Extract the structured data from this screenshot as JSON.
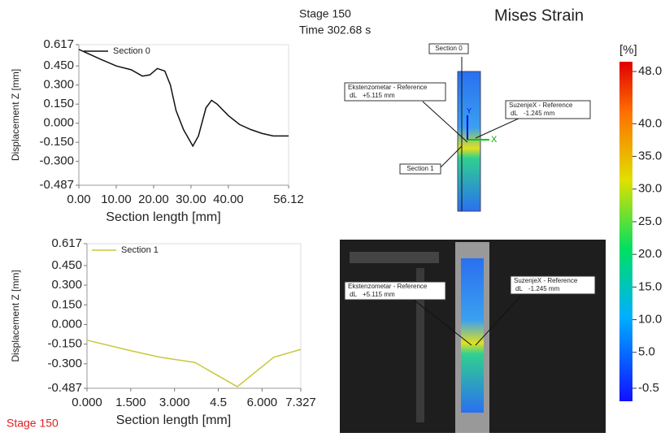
{
  "header": {
    "stage": "Stage 150",
    "time": "Time  302.68 s",
    "title": "Mises Strain"
  },
  "chart_data": [
    {
      "type": "line",
      "ylabel": "Displacement Z [mm]",
      "xlabel": "Section length [mm]",
      "xlim": [
        0,
        56.12
      ],
      "ylim": [
        -0.487,
        0.617
      ],
      "xticks": [
        {
          "value": 0,
          "label": "0.00"
        },
        {
          "value": 10,
          "label": "10.00"
        },
        {
          "value": 20,
          "label": "20.00"
        },
        {
          "value": 30,
          "label": "30.00"
        },
        {
          "value": 40,
          "label": "40.00"
        },
        56.12
      ],
      "yticks": [
        0.617,
        {
          "value": 0.45,
          "label": "0.450"
        },
        {
          "value": 0.3,
          "label": "0.300"
        },
        {
          "value": 0.15,
          "label": "0.150"
        },
        {
          "value": 0,
          "label": "0.000"
        },
        {
          "value": -0.15,
          "label": "-0.150"
        },
        {
          "value": -0.3,
          "label": "-0.300"
        },
        -0.487
      ],
      "series": [
        {
          "name": "Section 0",
          "color": "#111111",
          "x": [
            0,
            3,
            6,
            10,
            14,
            17,
            19,
            21,
            23,
            24.5,
            26,
            28,
            30.5,
            32,
            34,
            35.5,
            37,
            40,
            43,
            46,
            49,
            52,
            56.12
          ],
          "values": [
            0.58,
            0.54,
            0.5,
            0.45,
            0.42,
            0.37,
            0.38,
            0.43,
            0.41,
            0.3,
            0.1,
            -0.05,
            -0.18,
            -0.1,
            0.12,
            0.18,
            0.15,
            0.06,
            -0.01,
            -0.05,
            -0.08,
            -0.1,
            -0.1
          ]
        }
      ]
    },
    {
      "type": "line",
      "ylabel": "Displacement Z [mm]",
      "xlabel": "Section length [mm]",
      "xlim": [
        0,
        7.327
      ],
      "ylim": [
        -0.487,
        0.617
      ],
      "xticks": [
        {
          "value": 0,
          "label": "0.000"
        },
        {
          "value": 1.5,
          "label": "1.500"
        },
        {
          "value": 3,
          "label": "3.000"
        },
        4.5,
        {
          "value": 6,
          "label": "6.000"
        },
        7.327
      ],
      "yticks": [
        0.617,
        {
          "value": 0.45,
          "label": "0.450"
        },
        {
          "value": 0.3,
          "label": "0.300"
        },
        {
          "value": 0.15,
          "label": "0.150"
        },
        {
          "value": 0,
          "label": "0.000"
        },
        {
          "value": -0.15,
          "label": "-0.150"
        },
        {
          "value": -0.3,
          "label": "-0.300"
        },
        -0.487
      ],
      "series": [
        {
          "name": "Section 1",
          "color": "#c8c83a",
          "x": [
            0,
            1.5,
            2.5,
            3.7,
            5.15,
            6.4,
            7.327
          ],
          "values": [
            -0.12,
            -0.2,
            -0.25,
            -0.29,
            -0.475,
            -0.25,
            -0.19
          ]
        }
      ]
    }
  ],
  "colorbar": {
    "unit": "[%]",
    "lim": [
      -0.5,
      48
    ],
    "ticks": [
      {
        "value": 48,
        "label": "48.0"
      },
      {
        "value": 40,
        "label": "40.0"
      },
      {
        "value": 35,
        "label": "35.0"
      },
      {
        "value": 30,
        "label": "30.0"
      },
      {
        "value": 25,
        "label": "25.0"
      },
      {
        "value": 20,
        "label": "20.0"
      },
      {
        "value": 15,
        "label": "15.0"
      },
      {
        "value": 10,
        "label": "10.0"
      },
      {
        "value": 5,
        "label": "5.0"
      },
      -0.5
    ]
  },
  "view3d": {
    "section0": "Section 0",
    "section1": "Section 1",
    "axis_y": "Y",
    "axis_x": "X",
    "ext": {
      "name": "Ekstenzometar - Reference",
      "key": "dL",
      "value": "+5.115 mm"
    },
    "suz": {
      "name": "SuzenjeX - Reference",
      "key": "dL",
      "value": "-1.245 mm"
    }
  },
  "photo": {
    "ext": {
      "name": "Ekstenzometar - Reference",
      "key": "dL",
      "value": "+5.115 mm"
    },
    "suz": {
      "name": "SuzenjeX - Reference",
      "key": "dL",
      "value": "-1.245 mm"
    }
  },
  "footer": "Stage 150"
}
